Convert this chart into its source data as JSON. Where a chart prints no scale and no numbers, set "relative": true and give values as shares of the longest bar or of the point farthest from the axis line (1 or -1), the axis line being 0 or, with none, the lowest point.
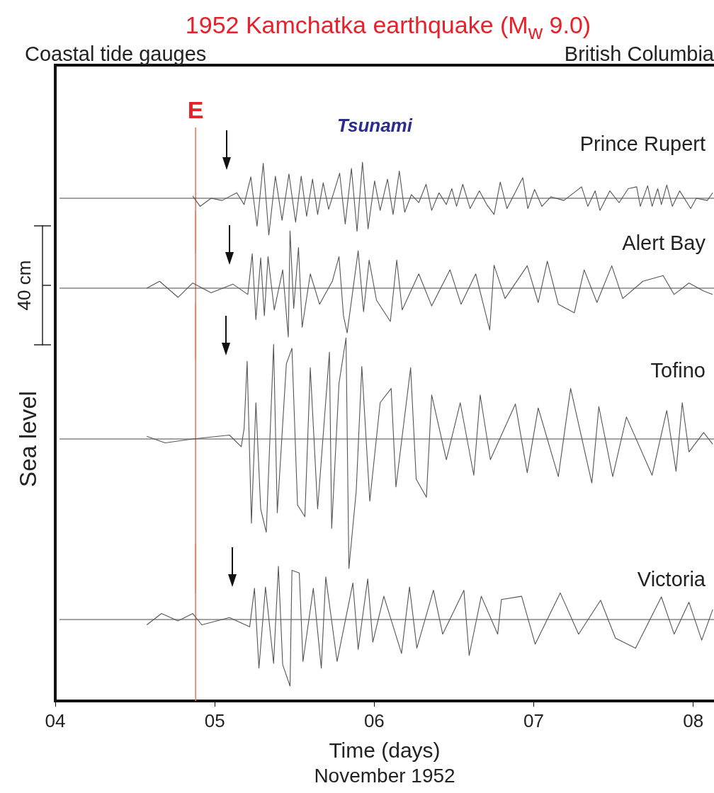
{
  "chart_data": [
    {
      "type": "line",
      "title": "1952 Kamchatka earthquake (M$_{w}$ 9.0)",
      "subtitle": "Coastal tide gauges",
      "relative": true,
      "xlim": [
        4,
        8.13
      ],
      "tick_labels": false,
      "marker": "none",
      "series": [
        {
          "name": "Prince Rupert",
          "color": "#555555",
          "x": [
            4.862,
            4.908,
            4.977,
            5.046,
            5.138,
            5.184,
            5.226,
            5.265,
            5.304,
            5.339,
            5.38,
            5.422,
            5.465,
            5.507,
            5.542,
            5.576,
            5.613,
            5.645,
            5.68,
            5.714,
            5.783,
            5.818,
            5.857,
            5.892,
            5.926,
            5.961,
            6.002,
            6.037,
            6.083,
            6.118,
            6.157,
            6.191,
            6.233,
            6.279,
            6.325,
            6.36,
            6.406,
            6.452,
            6.486,
            6.516,
            6.555,
            6.601,
            6.659,
            6.705,
            6.751,
            6.79,
            6.832,
            6.931,
            6.963,
            7.005,
            7.051,
            7.108,
            7.189,
            7.3,
            7.339,
            7.385,
            7.415,
            7.477,
            7.535,
            7.592,
            7.645,
            7.668,
            7.714,
            7.742,
            7.777,
            7.8,
            7.834,
            7.869,
            7.915,
            7.984,
            8.019,
            8.088,
            8.122
          ],
          "values": [
            0.06,
            -0.22,
            0,
            -0.06,
            0.15,
            -0.17,
            0.58,
            -0.76,
            0.95,
            -1,
            0.6,
            -0.6,
            0.66,
            -0.65,
            0.6,
            -0.49,
            0.52,
            -0.44,
            0.42,
            -0.3,
            0.68,
            -0.7,
            0.81,
            -0.9,
            0.98,
            -0.83,
            0.47,
            -0.33,
            0.52,
            -0.44,
            0.74,
            -0.38,
            0.1,
            -0.12,
            0.38,
            -0.33,
            0.15,
            -0.17,
            0.26,
            -0.22,
            0.38,
            -0.28,
            0.2,
            -0.17,
            -0.44,
            0.44,
            -0.28,
            0.56,
            -0.28,
            0.24,
            -0.22,
            0.04,
            -0.06,
            0.31,
            -0.22,
            0.2,
            -0.33,
            0.2,
            -0.12,
            0.26,
            0.31,
            -0.22,
            0.34,
            -0.22,
            0.26,
            -0.17,
            0.36,
            -0.22,
            0.2,
            -0.28,
            0,
            -0.06,
            0.15
          ]
        }
      ],
      "ref_lines": [
        {
          "axis": "x",
          "value": 4.88,
          "label": "E",
          "color": "#f07a5a"
        },
        {
          "axis": "y",
          "value": 0,
          "color": "#333333"
        }
      ],
      "annotations": [
        "British Columbia",
        "Tsunami"
      ]
    },
    {
      "type": "line",
      "relative": true,
      "xlim": [
        4,
        8.13
      ],
      "tick_labels": false,
      "marker": "none",
      "series": [
        {
          "name": "Alert Bay",
          "color": "#555555",
          "x": [
            4.574,
            4.654,
            4.77,
            4.862,
            4.977,
            5.115,
            5.207,
            5.235,
            5.258,
            5.288,
            5.311,
            5.334,
            5.373,
            5.426,
            5.461,
            5.472,
            5.495,
            5.525,
            5.548,
            5.599,
            5.657,
            5.737,
            5.779,
            5.807,
            5.83,
            5.899,
            5.933,
            5.968,
            6.014,
            6.101,
            6.141,
            6.175,
            6.279,
            6.36,
            6.475,
            6.544,
            6.636,
            6.724,
            6.751,
            6.82,
            6.959,
            7.028,
            7.085,
            7.154,
            7.254,
            7.316,
            7.396,
            7.489,
            7.558,
            7.684,
            7.811,
            7.88,
            7.973,
            8.065,
            8.122
          ],
          "values": [
            0,
            0.12,
            -0.16,
            0.09,
            -0.08,
            0.07,
            -0.11,
            0.6,
            -0.55,
            0.53,
            -0.48,
            0.55,
            -0.38,
            0.32,
            -0.85,
            1,
            -0.35,
            0.71,
            -0.68,
            0.25,
            -0.28,
            0.12,
            0.55,
            -0.48,
            -0.78,
            0.65,
            -0.41,
            0.49,
            -0.21,
            -0.58,
            0.49,
            -0.38,
            0.25,
            -0.31,
            0.32,
            -0.28,
            0.25,
            -0.73,
            0.4,
            -0.18,
            0.39,
            -0.25,
            0.47,
            -0.28,
            -0.43,
            0.32,
            -0.25,
            0.39,
            -0.18,
            0.12,
            0.22,
            -0.11,
            0.09,
            -0.05,
            -0.11
          ]
        }
      ],
      "ref_lines": [
        {
          "axis": "x",
          "value": 4.88,
          "color": "#f07a5a"
        },
        {
          "axis": "y",
          "value": 0,
          "color": "#333333"
        }
      ],
      "annotations": [
        "40 cm"
      ]
    },
    {
      "type": "line",
      "ylabel": "Sea level",
      "relative": true,
      "xlim": [
        4,
        8.13
      ],
      "tick_labels": false,
      "marker": "none",
      "series": [
        {
          "name": "Tofino",
          "color": "#555555",
          "x": [
            4.574,
            4.689,
            4.862,
            5.092,
            5.166,
            5.184,
            5.203,
            5.23,
            5.258,
            5.288,
            5.323,
            5.369,
            5.392,
            5.449,
            5.484,
            5.519,
            5.565,
            5.599,
            5.645,
            5.719,
            5.733,
            5.779,
            5.823,
            5.841,
            5.887,
            5.922,
            5.972,
            6.037,
            6.106,
            6.136,
            6.228,
            6.263,
            6.327,
            6.36,
            6.452,
            6.539,
            6.624,
            6.664,
            6.728,
            6.885,
            6.959,
            7.028,
            7.154,
            7.231,
            7.364,
            7.408,
            7.495,
            7.581,
            7.742,
            7.834,
            7.892,
            7.931,
            7.973,
            8.065,
            8.122
          ],
          "values": [
            0.02,
            -0.03,
            0,
            0.03,
            -0.06,
            0.08,
            0.6,
            -0.65,
            0.28,
            -0.54,
            -0.72,
            0.73,
            -0.57,
            0.58,
            0.7,
            -0.51,
            -0.6,
            0.55,
            -0.54,
            0.67,
            -0.69,
            0.43,
            0.78,
            -1,
            -0.4,
            0.56,
            -0.48,
            0.28,
            0.39,
            -0.37,
            0.55,
            -0.31,
            -0.45,
            0.34,
            -0.16,
            0.28,
            -0.28,
            0.34,
            -0.16,
            0.27,
            -0.26,
            0.24,
            -0.29,
            0.39,
            -0.34,
            0.25,
            -0.29,
            0.17,
            -0.28,
            0.22,
            -0.25,
            0.28,
            -0.1,
            0.05,
            -0.04
          ]
        }
      ],
      "ref_lines": [
        {
          "axis": "x",
          "value": 4.88,
          "color": "#f07a5a"
        },
        {
          "axis": "y",
          "value": 0,
          "color": "#333333"
        }
      ]
    },
    {
      "type": "line",
      "xlabel": "Time (days)",
      "relative": true,
      "xlim": [
        4,
        8.13
      ],
      "tick_labels": "x",
      "marker": "none",
      "xticks": [
        {
          "value": 4,
          "label": "04"
        },
        {
          "value": 5,
          "label": "05"
        },
        {
          "value": 6,
          "label": "06"
        },
        {
          "value": 7,
          "label": "07"
        },
        {
          "value": 8,
          "label": "08"
        }
      ],
      "series": [
        {
          "name": "Victoria",
          "color": "#555555",
          "x": [
            4.574,
            4.666,
            4.77,
            4.862,
            4.919,
            5.092,
            5.219,
            5.249,
            5.277,
            5.318,
            5.369,
            5.399,
            5.426,
            5.472,
            5.484,
            5.53,
            5.553,
            5.618,
            5.668,
            5.696,
            5.767,
            5.866,
            5.899,
            5.959,
            5.991,
            6.06,
            6.171,
            6.221,
            6.267,
            6.371,
            6.429,
            6.562,
            6.595,
            6.671,
            6.774,
            6.797,
            6.924,
            7.009,
            7.166,
            7.281,
            7.419,
            7.512,
            7.638,
            7.8,
            7.88,
            7.973,
            8.053,
            8.122
          ],
          "values": [
            -0.08,
            0.09,
            -0.02,
            0.09,
            -0.08,
            0.03,
            -0.11,
            0.47,
            -0.73,
            0.49,
            -0.66,
            0.8,
            -0.68,
            -1,
            0.74,
            0.7,
            -0.63,
            0.47,
            -0.73,
            0.64,
            -0.63,
            0.55,
            -0.45,
            0.61,
            -0.34,
            0.35,
            -0.51,
            0.49,
            -0.43,
            0.44,
            -0.22,
            0.44,
            -0.54,
            0.35,
            -0.22,
            0.3,
            0.35,
            -0.37,
            0.4,
            -0.22,
            0.29,
            -0.28,
            -0.43,
            0.34,
            -0.22,
            0.26,
            -0.31,
            0.15
          ]
        }
      ],
      "ref_lines": [
        {
          "axis": "x",
          "value": 4.88,
          "color": "#f07a5a"
        },
        {
          "axis": "y",
          "value": 0,
          "color": "#333333"
        }
      ],
      "annotations": [
        "November 1952"
      ]
    }
  ]
}
